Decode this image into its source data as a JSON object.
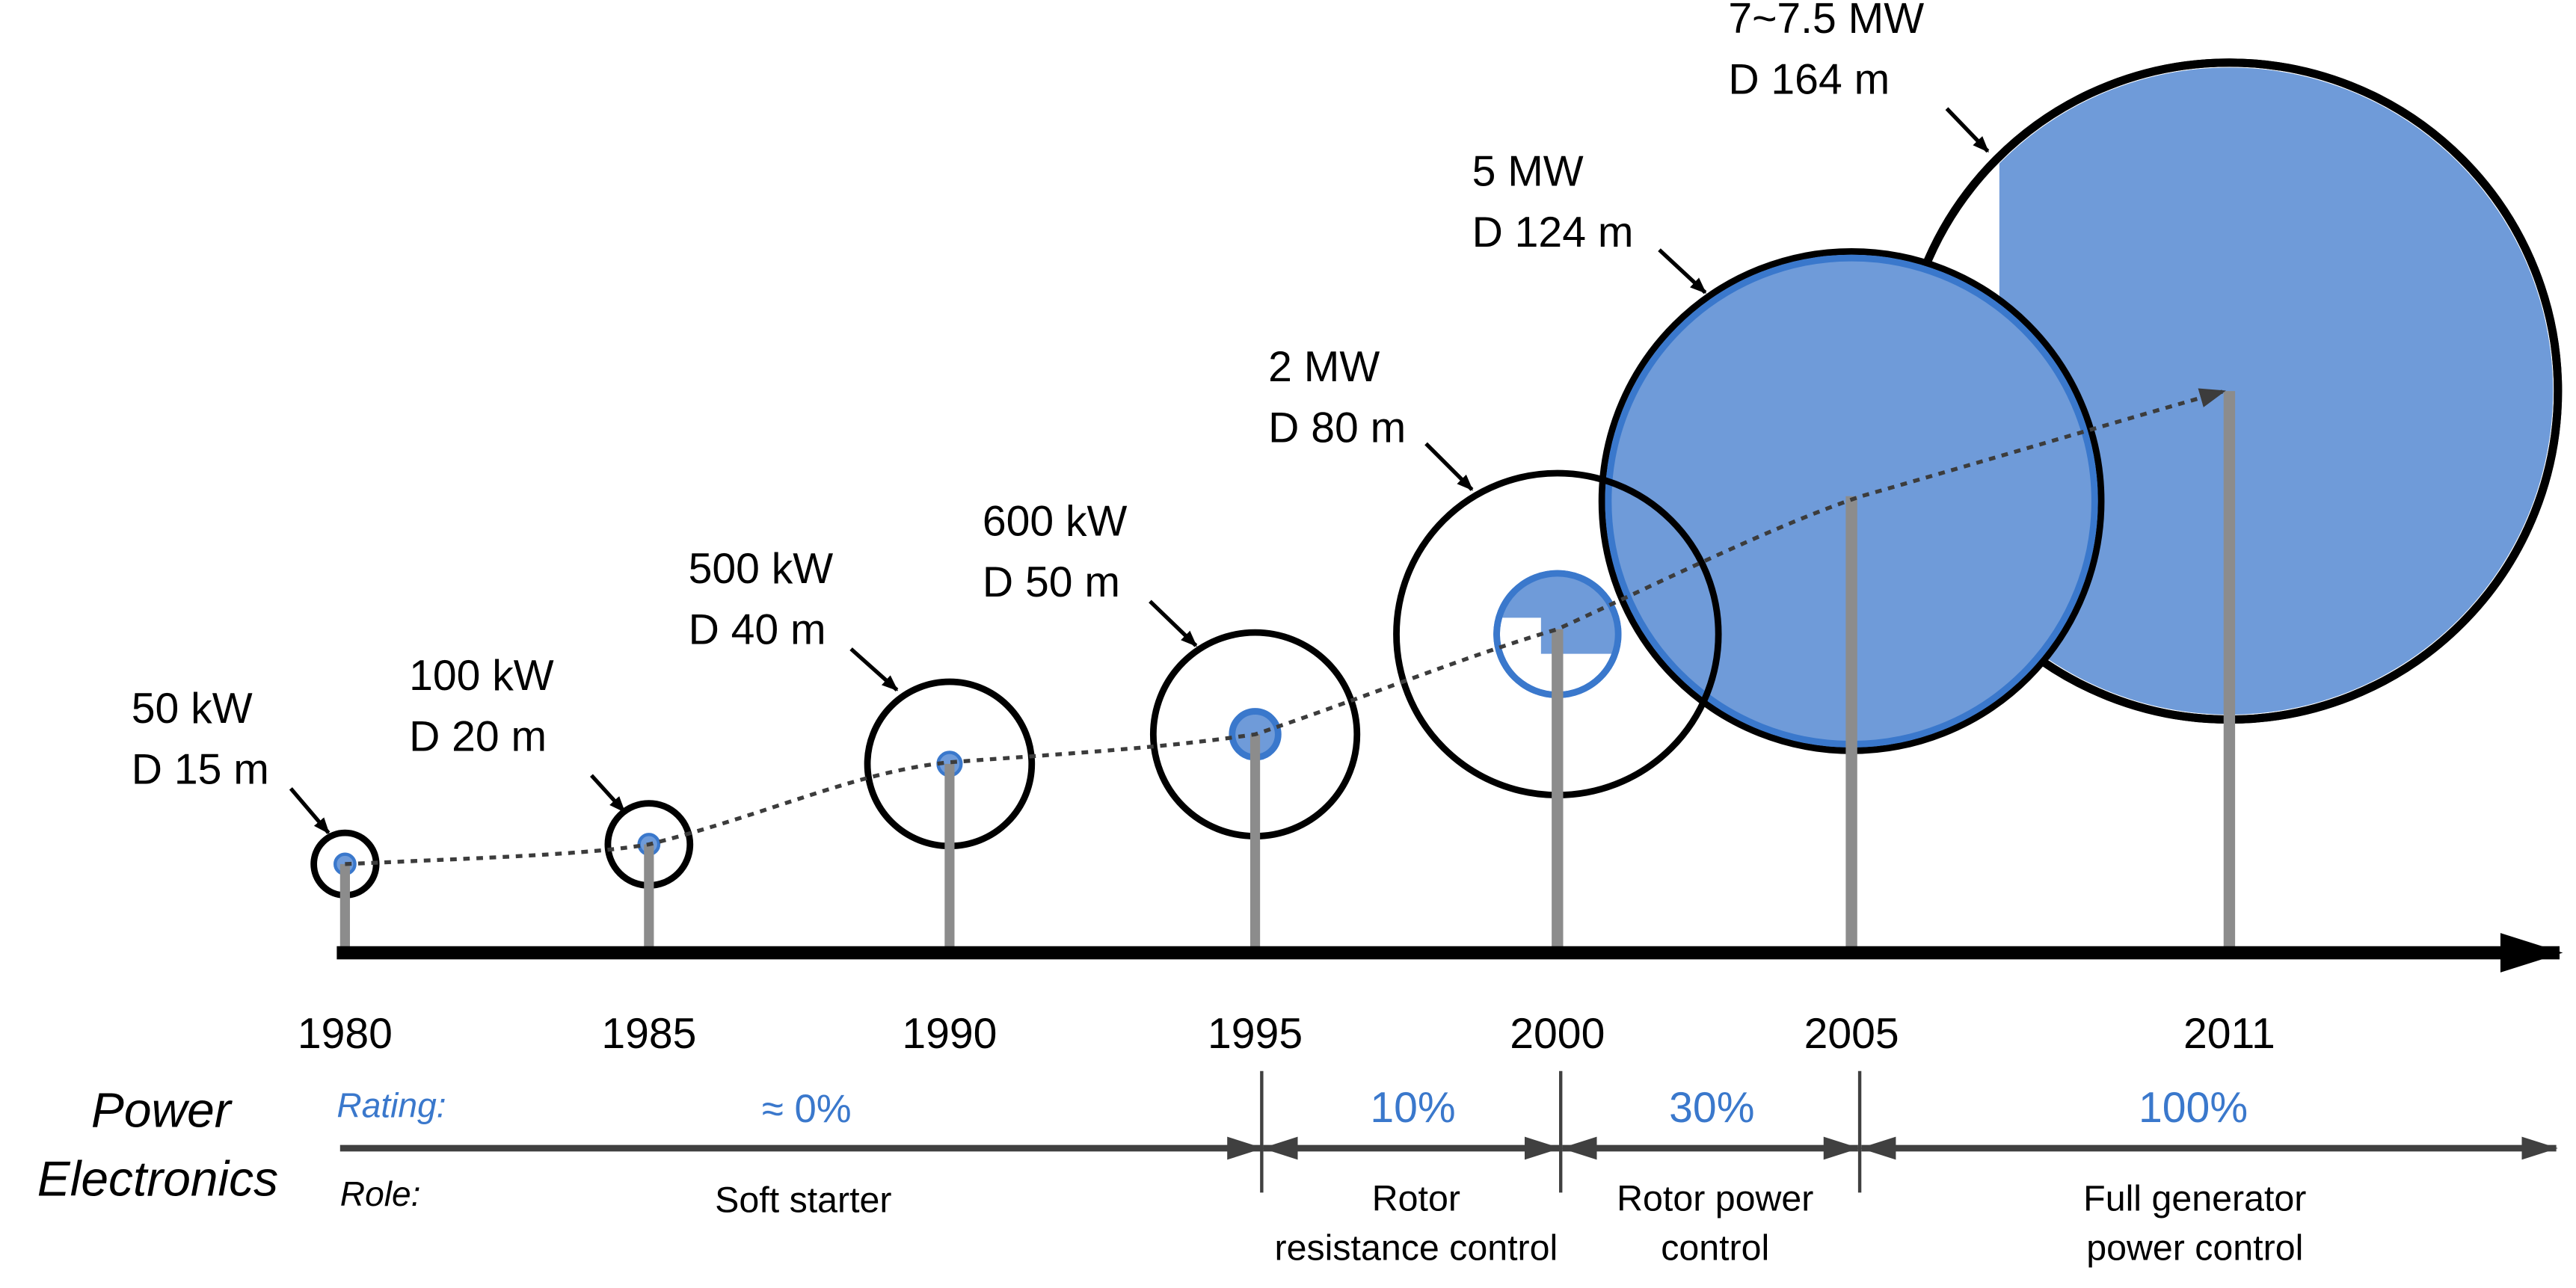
{
  "title_lines": [
    "Power",
    "Electronics"
  ],
  "row_labels": {
    "rating": "Rating:",
    "role": "Role:"
  },
  "turbines": [
    {
      "id": "t1980",
      "year": "1980",
      "power": "50 kW",
      "diameter": "D 15 m",
      "rotor_m": 15,
      "pe_share": 0
    },
    {
      "id": "t1985",
      "year": "1985",
      "power": "100 kW",
      "diameter": "D 20 m",
      "rotor_m": 20,
      "pe_share": 0
    },
    {
      "id": "t1990",
      "year": "1990",
      "power": "500 kW",
      "diameter": "D 40 m",
      "rotor_m": 40,
      "pe_share": 0
    },
    {
      "id": "t1995",
      "year": "1995",
      "power": "600 kW",
      "diameter": "D 50 m",
      "rotor_m": 50,
      "pe_share": 0
    },
    {
      "id": "t2000",
      "year": "2000",
      "power": "2 MW",
      "diameter": "D 80 m",
      "rotor_m": 80,
      "pe_share": 0.1
    },
    {
      "id": "t2005",
      "year": "2005",
      "power": "5 MW",
      "diameter": "D 124 m",
      "rotor_m": 124,
      "pe_share": 0.3
    },
    {
      "id": "t2011",
      "year": "2011",
      "power": "7~7.5 MW",
      "diameter": "D 164 m",
      "rotor_m": 164,
      "pe_share": 1.0
    }
  ],
  "phases": [
    {
      "rating": "≈ 0%",
      "role_lines": [
        "Soft starter"
      ]
    },
    {
      "rating": "10%",
      "role_lines": [
        "Rotor",
        "resistance control"
      ]
    },
    {
      "rating": "30%",
      "role_lines": [
        "Rotor power",
        "control"
      ]
    },
    {
      "rating": "100%",
      "role_lines": [
        "Full generator",
        "power control"
      ]
    }
  ],
  "colors": {
    "accent_blue": "#3a78cc",
    "fill_blue": "#6f9bd9",
    "tower_gray": "#8c8c8c",
    "axis_black": "#000000",
    "arrow_gray": "#404040"
  }
}
